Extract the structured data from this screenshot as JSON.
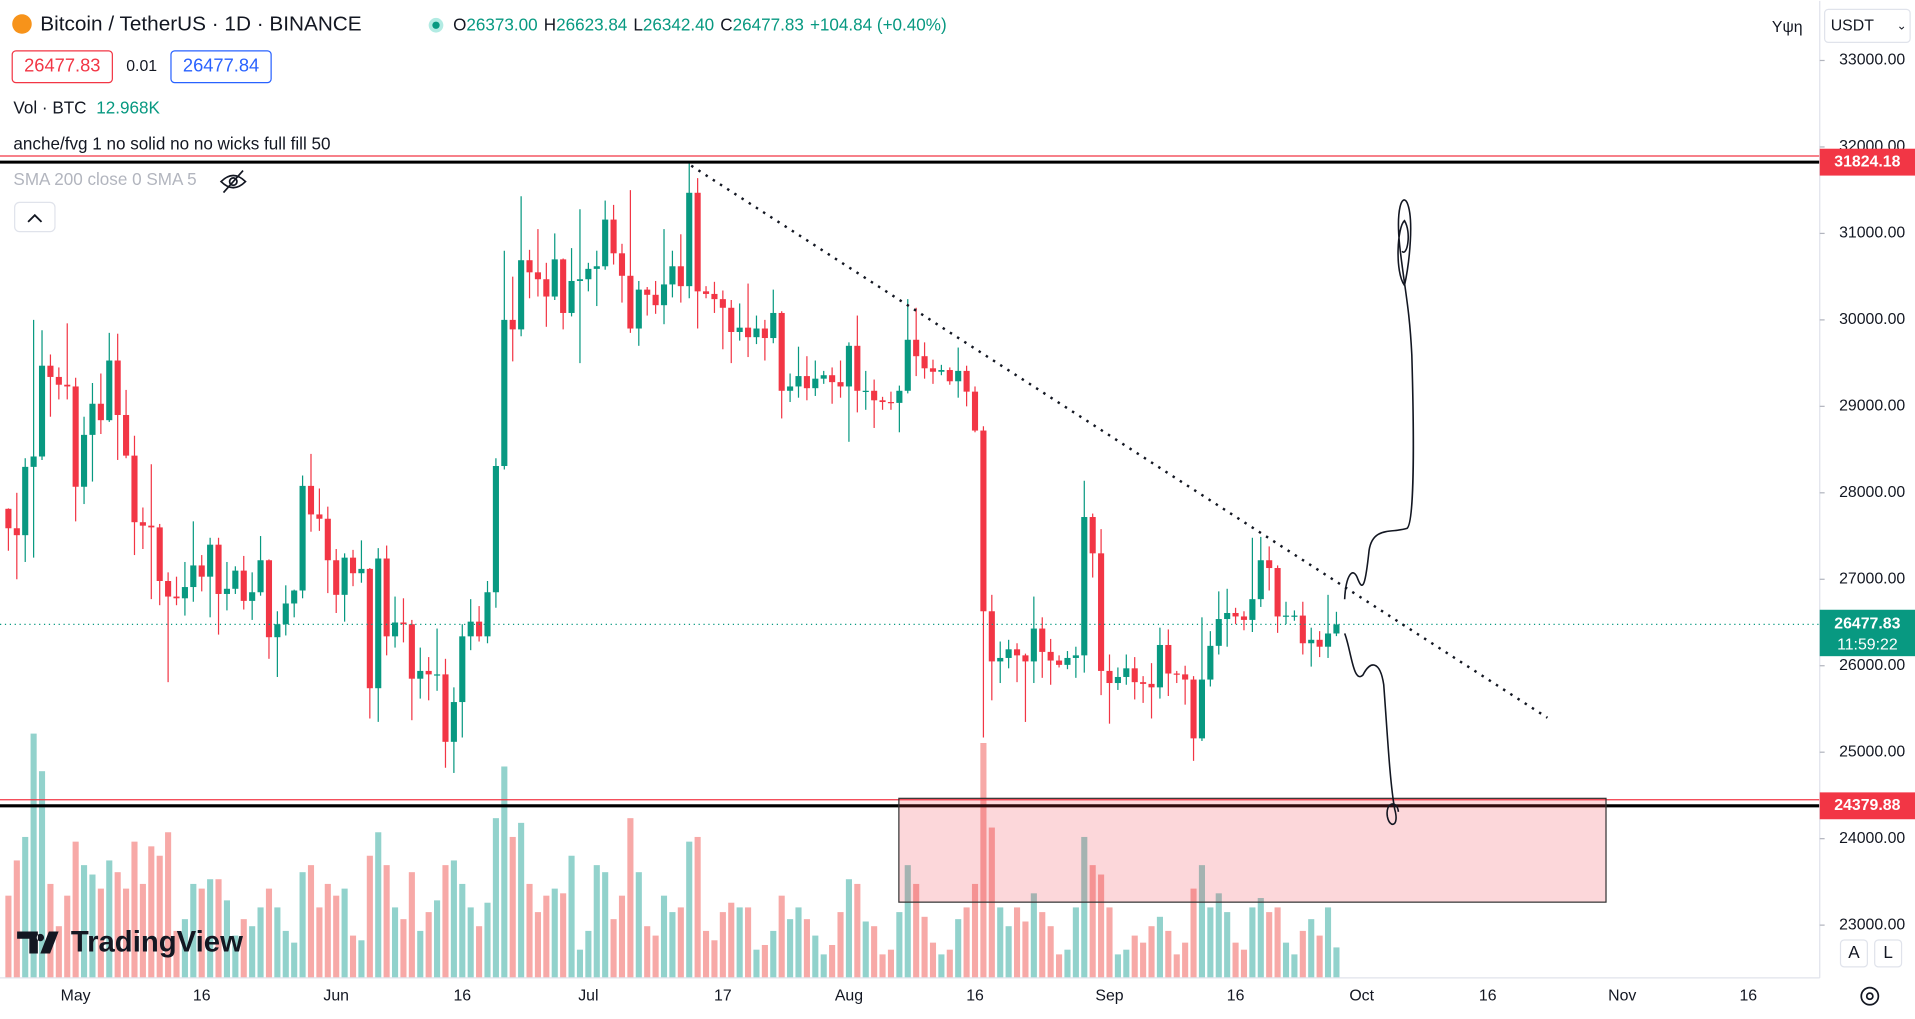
{
  "header": {
    "symbol": "Bitcoin / TetherUS · 1D · BINANCE",
    "ohlc": [
      {
        "k": "O",
        "v": "26373.00"
      },
      {
        "k": "H",
        "v": "26623.84"
      },
      {
        "k": "L",
        "v": "26342.40"
      },
      {
        "k": "C",
        "v": "26477.83"
      }
    ],
    "change": "+104.84 (+0.40%)",
    "bid": "26477.83",
    "spread": "0.01",
    "ask": "26477.84",
    "vol_label": "Vol · BTC",
    "vol_value": "12.968K",
    "indicator_1": "anche/fvg 1 no solid no no wicks full fill 50",
    "indicator_2": "SMA 200 close 0 SMA 5",
    "scale_mode": "Υψη",
    "currency": "USDT",
    "auto_button": "A",
    "log_button": "L",
    "logo": "TradingView"
  },
  "chart_data": {
    "type": "candlestick",
    "up_color": "#089981",
    "down_color": "#f23645",
    "volume_up_color": "#92d2cc",
    "volume_down_color": "#f7a9a7",
    "xlim": [
      -1,
      215.5
    ],
    "ylim": [
      22390,
      33690
    ],
    "xticks": [
      {
        "value": 8,
        "label": "May"
      },
      {
        "value": 23,
        "label": "16"
      },
      {
        "value": 39,
        "label": "Jun"
      },
      {
        "value": 54,
        "label": "16"
      },
      {
        "value": 69,
        "label": "Jul"
      },
      {
        "value": 85,
        "label": "17"
      },
      {
        "value": 100,
        "label": "Aug"
      },
      {
        "value": 115,
        "label": "16"
      },
      {
        "value": 131,
        "label": "Sep"
      },
      {
        "value": 146,
        "label": "16"
      },
      {
        "value": 161,
        "label": "Oct"
      },
      {
        "value": 176,
        "label": "16"
      },
      {
        "value": 192,
        "label": "Nov"
      },
      {
        "value": 207,
        "label": "16"
      }
    ],
    "yticks": [
      {
        "value": 23000,
        "label": "23000.00"
      },
      {
        "value": 24000,
        "label": "24000.00"
      },
      {
        "value": 25000,
        "label": "25000.00"
      },
      {
        "value": 26000,
        "label": "26000.00"
      },
      {
        "value": 27000,
        "label": "27000.00"
      },
      {
        "value": 28000,
        "label": "28000.00"
      },
      {
        "value": 29000,
        "label": "29000.00"
      },
      {
        "value": 30000,
        "label": "30000.00"
      },
      {
        "value": 31000,
        "label": "31000.00"
      },
      {
        "value": 32000,
        "label": "32000.00"
      },
      {
        "value": 33000,
        "label": "33000.00"
      }
    ],
    "levels": [
      31824.18,
      24379.88
    ],
    "last_price": 26477.83,
    "countdown": "11:59:22",
    "candles": [
      [
        27815,
        27820,
        27330,
        27590
      ],
      [
        27590,
        28000,
        27000,
        27510
      ],
      [
        27510,
        28400,
        27200,
        28300
      ],
      [
        28300,
        30000,
        27250,
        28420
      ],
      [
        28420,
        29880,
        28380,
        29470
      ],
      [
        29470,
        29600,
        28880,
        29340
      ],
      [
        29340,
        29450,
        29080,
        29250
      ],
      [
        29250,
        29960,
        29080,
        29230
      ],
      [
        29230,
        29330,
        27670,
        28070
      ],
      [
        28070,
        28880,
        27870,
        28670
      ],
      [
        28670,
        29270,
        28130,
        29030
      ],
      [
        29030,
        29380,
        28680,
        28840
      ],
      [
        28840,
        29850,
        28820,
        29530
      ],
      [
        29530,
        29840,
        28380,
        28900
      ],
      [
        28900,
        29190,
        28400,
        28430
      ],
      [
        28430,
        28660,
        27280,
        27660
      ],
      [
        27660,
        27830,
        27350,
        27620
      ],
      [
        27620,
        28330,
        26770,
        27600
      ],
      [
        27600,
        27640,
        26700,
        26980
      ],
      [
        26980,
        27080,
        25810,
        26800
      ],
      [
        26800,
        27030,
        26700,
        26780
      ],
      [
        26780,
        27200,
        26580,
        26910
      ],
      [
        26910,
        27670,
        26740,
        27160
      ],
      [
        27160,
        27280,
        26860,
        27030
      ],
      [
        27030,
        27480,
        26560,
        27400
      ],
      [
        27400,
        27480,
        26360,
        26830
      ],
      [
        26830,
        27200,
        26640,
        26890
      ],
      [
        26890,
        27150,
        26830,
        27100
      ],
      [
        27100,
        27270,
        26650,
        26750
      ],
      [
        26750,
        27080,
        26530,
        26850
      ],
      [
        26850,
        27500,
        26810,
        27220
      ],
      [
        27220,
        27230,
        26080,
        26330
      ],
      [
        26330,
        26630,
        25870,
        26480
      ],
      [
        26480,
        26930,
        26350,
        26720
      ],
      [
        26720,
        26880,
        26560,
        26870
      ],
      [
        26870,
        28200,
        26780,
        28080
      ],
      [
        28080,
        28450,
        27550,
        27750
      ],
      [
        27750,
        28050,
        27560,
        27700
      ],
      [
        27700,
        27840,
        26840,
        27220
      ],
      [
        27220,
        27350,
        26610,
        26820
      ],
      [
        26820,
        27300,
        26510,
        27250
      ],
      [
        27250,
        27340,
        26920,
        27070
      ],
      [
        27070,
        27450,
        26960,
        27120
      ],
      [
        27120,
        27130,
        25390,
        25740
      ],
      [
        25740,
        27360,
        25350,
        27240
      ],
      [
        27240,
        27390,
        26120,
        26340
      ],
      [
        26340,
        26800,
        26210,
        26500
      ],
      [
        26500,
        26780,
        26270,
        26480
      ],
      [
        26480,
        26530,
        25370,
        25850
      ],
      [
        25850,
        26210,
        25620,
        25940
      ],
      [
        25940,
        26100,
        25600,
        25900
      ],
      [
        25900,
        26430,
        25710,
        25900
      ],
      [
        25900,
        26080,
        24820,
        25120
      ],
      [
        25120,
        25750,
        24760,
        25580
      ],
      [
        25580,
        26480,
        25170,
        26340
      ],
      [
        26340,
        26770,
        26180,
        26510
      ],
      [
        26510,
        26690,
        26280,
        26340
      ],
      [
        26340,
        26980,
        26260,
        26850
      ],
      [
        26850,
        28400,
        26670,
        28310
      ],
      [
        28310,
        30800,
        28270,
        30000
      ],
      [
        30000,
        30500,
        29520,
        29890
      ],
      [
        29890,
        31430,
        29810,
        30690
      ],
      [
        30690,
        30810,
        30250,
        30550
      ],
      [
        30550,
        31050,
        30270,
        30470
      ],
      [
        30470,
        30660,
        29920,
        30270
      ],
      [
        30270,
        31000,
        30230,
        30700
      ],
      [
        30700,
        30710,
        29890,
        30080
      ],
      [
        30080,
        30830,
        30040,
        30450
      ],
      [
        30450,
        31280,
        29500,
        30470
      ],
      [
        30470,
        30660,
        30330,
        30590
      ],
      [
        30590,
        30800,
        30160,
        30620
      ],
      [
        30620,
        31380,
        30580,
        31160
      ],
      [
        31160,
        31330,
        30640,
        30770
      ],
      [
        30770,
        30880,
        30200,
        30510
      ],
      [
        30510,
        31500,
        29850,
        29900
      ],
      [
        29900,
        30450,
        29700,
        30350
      ],
      [
        30350,
        30380,
        30050,
        30290
      ],
      [
        30290,
        30450,
        30070,
        30170
      ],
      [
        30170,
        31050,
        29950,
        30410
      ],
      [
        30410,
        30800,
        30260,
        30620
      ],
      [
        30620,
        30990,
        30200,
        30390
      ],
      [
        30390,
        31824,
        30250,
        31470
      ],
      [
        31470,
        31640,
        29900,
        30330
      ],
      [
        30330,
        30390,
        30250,
        30300
      ],
      [
        30300,
        30440,
        30080,
        30240
      ],
      [
        30240,
        30340,
        29660,
        30140
      ],
      [
        30140,
        30230,
        29500,
        29860
      ],
      [
        29860,
        30190,
        29760,
        29910
      ],
      [
        29910,
        30420,
        29570,
        29800
      ],
      [
        29800,
        30050,
        29720,
        29900
      ],
      [
        29900,
        30000,
        29530,
        29790
      ],
      [
        29790,
        30350,
        29730,
        30080
      ],
      [
        30080,
        30100,
        28860,
        29180
      ],
      [
        29180,
        29380,
        29050,
        29230
      ],
      [
        29230,
        29690,
        29100,
        29350
      ],
      [
        29350,
        29580,
        29070,
        29210
      ],
      [
        29210,
        29530,
        29120,
        29320
      ],
      [
        29320,
        29410,
        29260,
        29360
      ],
      [
        29360,
        29450,
        29030,
        29280
      ],
      [
        29280,
        29530,
        29100,
        29230
      ],
      [
        29230,
        29740,
        28590,
        29700
      ],
      [
        29700,
        30050,
        28930,
        29180
      ],
      [
        29180,
        29410,
        28960,
        29180
      ],
      [
        29180,
        29310,
        28750,
        29070
      ],
      [
        29070,
        29110,
        28960,
        29050
      ],
      [
        29050,
        29170,
        28960,
        29040
      ],
      [
        29040,
        29240,
        28700,
        29180
      ],
      [
        29180,
        30240,
        29150,
        29770
      ],
      [
        29770,
        30140,
        29350,
        29580
      ],
      [
        29580,
        29740,
        29320,
        29440
      ],
      [
        29440,
        29540,
        29260,
        29400
      ],
      [
        29400,
        29480,
        29360,
        29420
      ],
      [
        29420,
        29450,
        29250,
        29290
      ],
      [
        29290,
        29680,
        29100,
        29410
      ],
      [
        29410,
        29470,
        29000,
        29170
      ],
      [
        29170,
        29230,
        28700,
        28720
      ],
      [
        28720,
        28770,
        25170,
        26630
      ],
      [
        26630,
        26820,
        25600,
        26050
      ],
      [
        26050,
        26280,
        25800,
        26090
      ],
      [
        26090,
        26300,
        25970,
        26190
      ],
      [
        26190,
        26260,
        25810,
        26120
      ],
      [
        26120,
        26140,
        25350,
        26050
      ],
      [
        26050,
        26800,
        25800,
        26430
      ],
      [
        26430,
        26560,
        25860,
        26160
      ],
      [
        26160,
        26310,
        25780,
        26060
      ],
      [
        26060,
        26120,
        25980,
        26010
      ],
      [
        26010,
        26170,
        25960,
        26090
      ],
      [
        26090,
        26220,
        25860,
        26120
      ],
      [
        26120,
        28140,
        25920,
        27720
      ],
      [
        27720,
        27760,
        27020,
        27300
      ],
      [
        27300,
        27580,
        25660,
        25940
      ],
      [
        25940,
        26130,
        25330,
        25800
      ],
      [
        25800,
        25980,
        25720,
        25870
      ],
      [
        25870,
        26130,
        25780,
        25970
      ],
      [
        25970,
        26100,
        25610,
        25810
      ],
      [
        25810,
        25880,
        25570,
        25790
      ],
      [
        25790,
        26030,
        25390,
        25750
      ],
      [
        25750,
        26440,
        25620,
        26240
      ],
      [
        26240,
        26420,
        25650,
        25910
      ],
      [
        25910,
        25940,
        25800,
        25900
      ],
      [
        25900,
        26000,
        25550,
        25840
      ],
      [
        25840,
        25880,
        24900,
        25160
      ],
      [
        25160,
        26560,
        25130,
        25840
      ],
      [
        25840,
        26400,
        25760,
        26230
      ],
      [
        26230,
        26860,
        26130,
        26540
      ],
      [
        26540,
        26890,
        26220,
        26610
      ],
      [
        26610,
        26670,
        26480,
        26570
      ],
      [
        26570,
        26630,
        26410,
        26530
      ],
      [
        26530,
        27480,
        26390,
        26770
      ],
      [
        26770,
        27490,
        26680,
        27220
      ],
      [
        27220,
        27380,
        26870,
        27130
      ],
      [
        27130,
        27160,
        26380,
        26570
      ],
      [
        26570,
        26740,
        26480,
        26580
      ],
      [
        26580,
        26640,
        26520,
        26580
      ],
      [
        26580,
        26740,
        26130,
        26260
      ],
      [
        26260,
        26440,
        25990,
        26300
      ],
      [
        26300,
        26400,
        26100,
        26220
      ],
      [
        26220,
        26820,
        26090,
        26373
      ],
      [
        26373,
        26623.84,
        26342.4,
        26477.83
      ]
    ],
    "volume": [
      35,
      50,
      60,
      104,
      88,
      40,
      22,
      35,
      58,
      48,
      44,
      38,
      50,
      45,
      38,
      58,
      40,
      56,
      52,
      62,
      20,
      25,
      40,
      38,
      42,
      42,
      33,
      18,
      25,
      22,
      30,
      38,
      30,
      20,
      15,
      45,
      48,
      30,
      40,
      35,
      38,
      18,
      16,
      52,
      62,
      48,
      30,
      25,
      45,
      20,
      28,
      33,
      48,
      50,
      40,
      30,
      22,
      32,
      68,
      90,
      60,
      66,
      40,
      28,
      35,
      38,
      36,
      52,
      12,
      20,
      48,
      45,
      25,
      35,
      68,
      45,
      22,
      18,
      35,
      28,
      30,
      58,
      60,
      20,
      16,
      28,
      32,
      30,
      30,
      12,
      14,
      20,
      35,
      25,
      30,
      25,
      18,
      10,
      14,
      28,
      42,
      40,
      24,
      22,
      10,
      12,
      28,
      48,
      40,
      26,
      15,
      10,
      12,
      25,
      30,
      40,
      100,
      64,
      30,
      22,
      30,
      24,
      36,
      28,
      22,
      10,
      12,
      30,
      60,
      48,
      44,
      30,
      10,
      12,
      18,
      15,
      22,
      26,
      20,
      10,
      15,
      38,
      48,
      30,
      36,
      28,
      15,
      12,
      30,
      34,
      28,
      30,
      15,
      10,
      20,
      25,
      18,
      30,
      12.968
    ]
  }
}
